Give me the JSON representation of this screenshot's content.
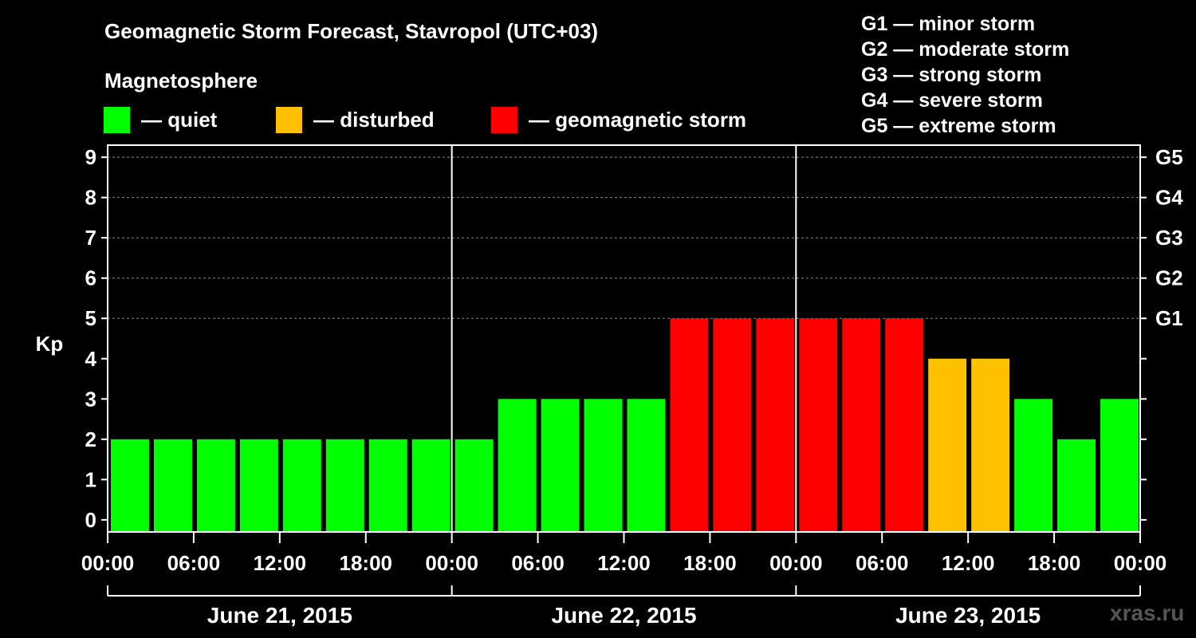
{
  "title": "Geomagnetic Storm Forecast, Stavropol (UTC+03)",
  "magnetosphere_heading": "Magnetosphere",
  "legend": [
    {
      "name": "quiet",
      "label": "— quiet",
      "color": "#00ff00"
    },
    {
      "name": "disturbed",
      "label": "— disturbed",
      "color": "#ffc000"
    },
    {
      "name": "storm",
      "label": "— geomagnetic storm",
      "color": "#ff0000"
    }
  ],
  "g_legend": [
    "G1 — minor storm",
    "G2 — moderate storm",
    "G3 — strong storm",
    "G4 — severe storm",
    "G5 — extreme storm"
  ],
  "watermark": "xras.ru",
  "chart_data": {
    "type": "bar",
    "ylabel": "Kp",
    "ylim": [
      -0.3,
      9.3
    ],
    "yticks": [
      0,
      1,
      2,
      3,
      4,
      5,
      6,
      7,
      8,
      9
    ],
    "right_axis": [
      {
        "kp": 5,
        "label": "G1"
      },
      {
        "kp": 6,
        "label": "G2"
      },
      {
        "kp": 7,
        "label": "G3"
      },
      {
        "kp": 8,
        "label": "G4"
      },
      {
        "kp": 9,
        "label": "G5"
      }
    ],
    "grid": "dashed horizontal at integer Kp from 5 to 9",
    "x_tick_labels": [
      "00:00",
      "06:00",
      "12:00",
      "18:00",
      "00:00",
      "06:00",
      "12:00",
      "18:00",
      "00:00",
      "06:00",
      "12:00",
      "18:00",
      "00:00"
    ],
    "x_ticks_hours": [
      0,
      6,
      12,
      18,
      24,
      30,
      36,
      42,
      48,
      54,
      60,
      66,
      72
    ],
    "x_range_hours": [
      0,
      72
    ],
    "day_separators_hours": [
      24,
      48
    ],
    "days": [
      {
        "label": "June 21, 2015",
        "start": 0,
        "end": 24
      },
      {
        "label": "June 22, 2015",
        "start": 24,
        "end": 48
      },
      {
        "label": "June 23, 2015",
        "start": 48,
        "end": 72
      }
    ],
    "interval_hours": 3,
    "values": [
      2,
      2,
      2,
      2,
      2,
      2,
      2,
      2,
      2,
      3,
      3,
      3,
      3,
      5,
      5,
      5,
      5,
      5,
      5,
      4,
      4,
      3,
      2,
      3
    ],
    "status": [
      "quiet",
      "quiet",
      "quiet",
      "quiet",
      "quiet",
      "quiet",
      "quiet",
      "quiet",
      "quiet",
      "quiet",
      "quiet",
      "quiet",
      "quiet",
      "storm",
      "storm",
      "storm",
      "storm",
      "storm",
      "storm",
      "disturbed",
      "disturbed",
      "quiet",
      "quiet",
      "quiet"
    ]
  }
}
